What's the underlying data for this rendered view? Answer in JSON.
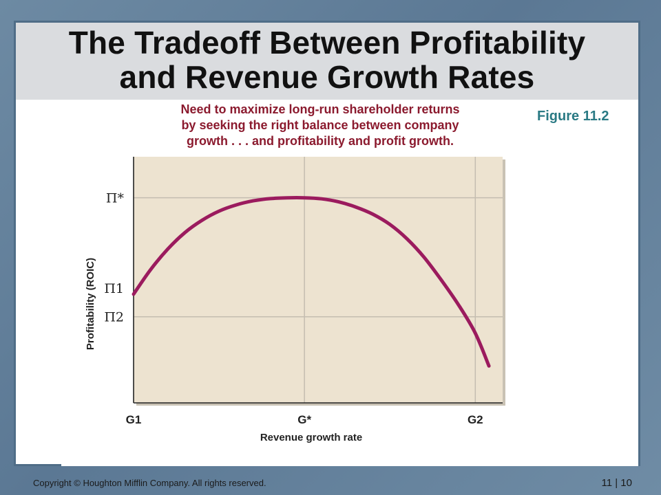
{
  "slide": {
    "title_line1": "The Tradeoff Between Profitability",
    "title_line2": "and Revenue Growth Rates",
    "callout_line1": "Need to maximize long-run shareholder returns",
    "callout_line2": "by seeking the right balance between company",
    "callout_line3": "growth . . . and profitability and profit growth.",
    "figure_label": "Figure 11.2",
    "copyright": "Copyright © Houghton Mifflin Company. All rights reserved.",
    "page_number": "11 | 10"
  },
  "colors": {
    "plot_background": "#ede3d0",
    "curve": "#9b1b5e",
    "callout_text": "#8b1a2e",
    "figure_label": "#2a7a84"
  },
  "chart_data": {
    "type": "line",
    "title": "",
    "xlabel": "Revenue growth rate",
    "ylabel": "Profitability (ROIC)",
    "xlim": [
      0,
      1.08
    ],
    "ylim": [
      0,
      1.2
    ],
    "grid": false,
    "x_ticks": [
      {
        "label": "G1",
        "value": 0
      },
      {
        "label": "G*",
        "value": 0.5
      },
      {
        "label": "G2",
        "value": 1.0
      }
    ],
    "y_ticks": [
      {
        "label": "Π*",
        "value": 1.0
      },
      {
        "label": "Π1",
        "value": 0.56
      },
      {
        "label": "Π2",
        "value": 0.42
      }
    ],
    "reference_lines": [
      {
        "axis": "y",
        "value": 1.0
      },
      {
        "axis": "x",
        "value": 0.5
      },
      {
        "axis": "y",
        "value": 0.42
      },
      {
        "axis": "x",
        "value": 1.0
      }
    ],
    "series": [
      {
        "x": [
          0,
          0.05,
          0.1,
          0.15,
          0.2,
          0.25,
          0.3,
          0.35,
          0.4,
          0.45,
          0.5,
          0.55,
          0.6,
          0.65,
          0.7,
          0.75,
          0.8,
          0.85,
          0.9,
          0.95,
          1.0,
          1.04
        ],
        "values": [
          0.53,
          0.65,
          0.75,
          0.83,
          0.89,
          0.935,
          0.965,
          0.985,
          0.996,
          1.0,
          1.0,
          0.995,
          0.98,
          0.955,
          0.92,
          0.87,
          0.8,
          0.71,
          0.6,
          0.48,
          0.34,
          0.18
        ]
      }
    ]
  }
}
